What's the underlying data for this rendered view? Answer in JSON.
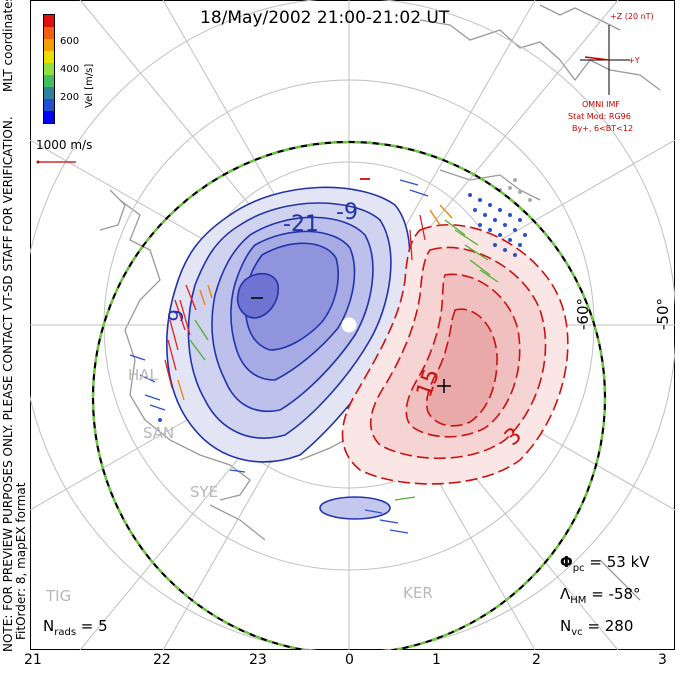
{
  "title": "18/May/2002 21:00-21:02 UT",
  "notice": "NOTE: FOR PREVIEW PURPOSES ONLY. PLEASE CONTACT VT-SD STAFF FOR VERIFICATION.",
  "fit_info": "FitOrder: 8, mapEX format",
  "mlt_label": "MLT coordinates",
  "colorbar": {
    "label": "Vel [m/s]",
    "ticks": [
      "600",
      "400",
      "200"
    ],
    "colors": [
      "#e01010",
      "#f06010",
      "#f0a000",
      "#e8e000",
      "#90e040",
      "#40c060",
      "#3080a0",
      "#2050d0",
      "#0000ff"
    ]
  },
  "reference_vector": "1000 m/s",
  "imf": {
    "top": "+Z (20 nT)",
    "right": "+Y",
    "source": "OMNI IMF",
    "stat_mod": "Stat Mod: RG96",
    "condition": "By+, 6<BT<12"
  },
  "latitude_labels": [
    "-60°",
    "-50°"
  ],
  "contour_labels": [
    "-21",
    "-9",
    "9",
    "15",
    "3"
  ],
  "stations": [
    "HAL",
    "SAN",
    "SYE",
    "TIG",
    "KER"
  ],
  "stats": {
    "phi_pc": "53 kV",
    "lambda_hm": "-58°",
    "n_vc": "280",
    "n_rads": "5"
  },
  "stat_labels": {
    "phi": "Φ",
    "phi_sub": "pc",
    "lambda": "Λ",
    "lambda_sub": "HM",
    "nvc": "N",
    "nvc_sub": "vc",
    "nrads": "N",
    "nrads_sub": "rads"
  },
  "mlt_ticks": [
    "21",
    "22",
    "23",
    "0",
    "1",
    "2",
    "3"
  ],
  "colors": {
    "negative_cell": "#2233aa",
    "positive_cell": "#cc1111",
    "boundary_green": "#66cc33",
    "grid": "#c0c0c0"
  }
}
